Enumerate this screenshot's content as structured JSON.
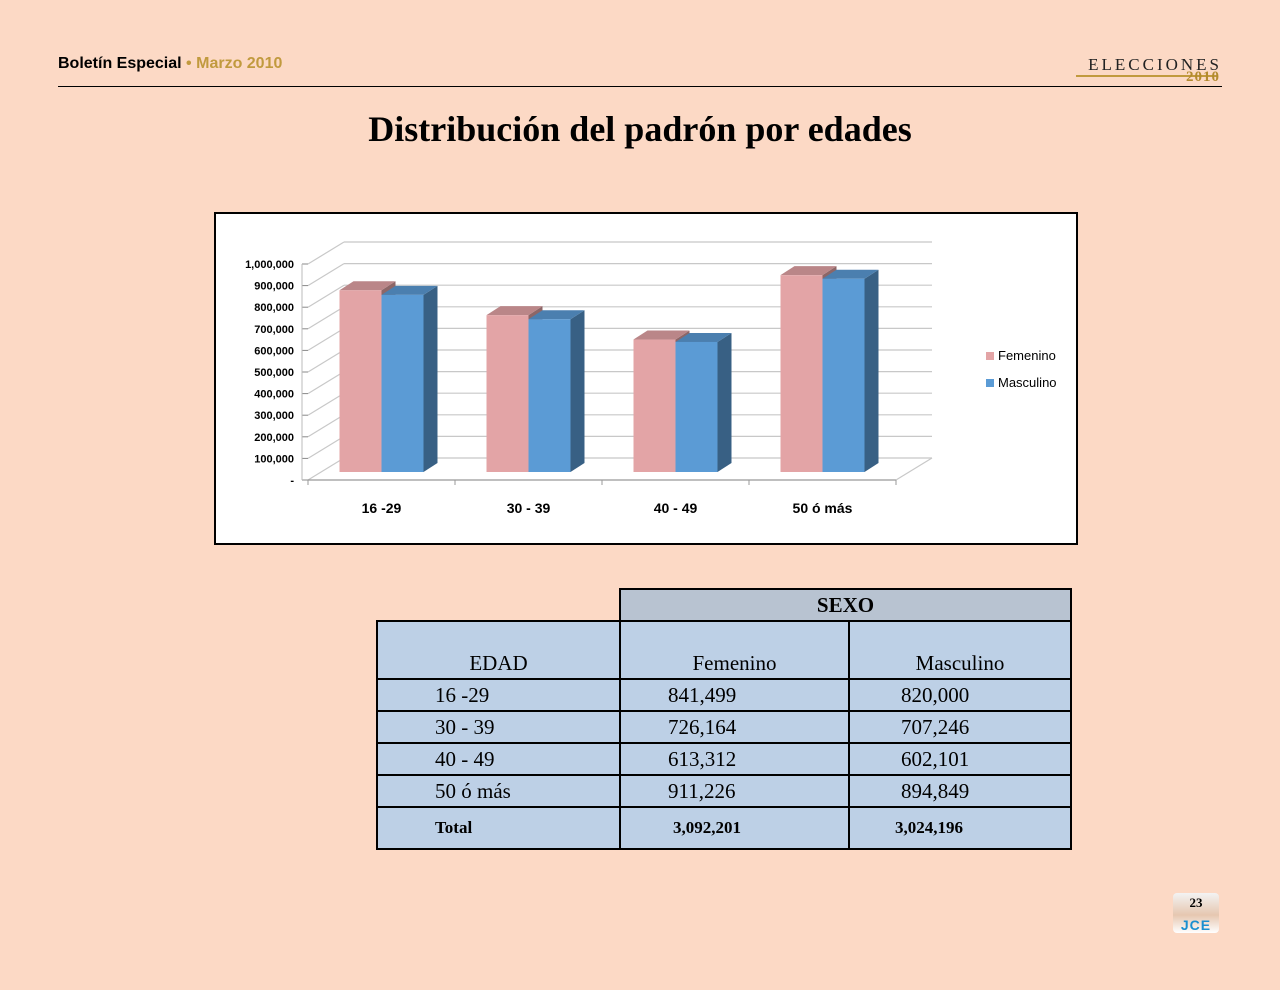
{
  "header": {
    "left_title": "Boletín Especial",
    "left_separator": "•",
    "left_date": "Marzo 2010",
    "brand": "ELECCIONES",
    "brand_year": "2010"
  },
  "page_title": "Distribución del padrón por edades",
  "chart_data": {
    "type": "bar",
    "title": "",
    "xlabel": "",
    "ylabel": "",
    "categories": [
      "16 -29",
      "30 - 39",
      "40 - 49",
      "50 ó más"
    ],
    "series": [
      {
        "name": "Femenino",
        "values": [
          841499,
          726164,
          613312,
          911226
        ],
        "color": "#e3a4a6"
      },
      {
        "name": "Masculino",
        "values": [
          820000,
          707246,
          602101,
          894849
        ],
        "color": "#5b9bd5"
      }
    ],
    "ylim": [
      0,
      1000000
    ],
    "yticks": [
      "-",
      "100,000",
      "200,000",
      "300,000",
      "400,000",
      "500,000",
      "600,000",
      "700,000",
      "800,000",
      "900,000",
      "1,000,000"
    ],
    "grid": true,
    "legend": "right",
    "style": "3d"
  },
  "table": {
    "group_header": "SEXO",
    "headers": [
      "EDAD",
      "Femenino",
      "Masculino"
    ],
    "rows": [
      [
        "16 -29",
        "841,499",
        "820,000"
      ],
      [
        "30 - 39",
        "726,164",
        "707,246"
      ],
      [
        "40 - 49",
        "613,312",
        "602,101"
      ],
      [
        "50 ó más",
        "911,226",
        "894,849"
      ]
    ],
    "total": [
      "Total",
      "3,092,201",
      "3,024,196"
    ]
  },
  "page_number": "23",
  "footer_logo": "JCE"
}
